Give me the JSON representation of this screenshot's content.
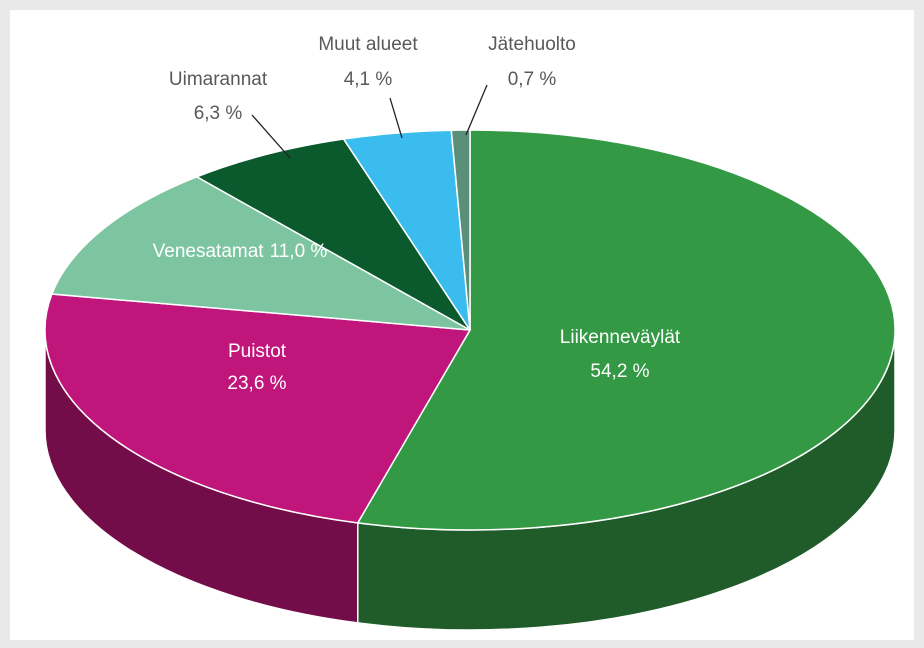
{
  "chart_data": {
    "type": "pie",
    "categories": [
      "Liikenneväylät",
      "Puistot",
      "Venesatamat",
      "Uimarannat",
      "Muut alueet",
      "Jätehuolto"
    ],
    "values": [
      54.2,
      23.6,
      11.0,
      6.3,
      4.1,
      0.7
    ],
    "value_labels": [
      "54,2 %",
      "23,6 %",
      "11,0 %",
      "6,3 %",
      "4,1 %",
      "0,7 %"
    ],
    "colors": [
      "#339944",
      "#c0157a",
      "#7dc4a0",
      "#0b5a2e",
      "#3bbcee",
      "#5a8f7a"
    ]
  }
}
